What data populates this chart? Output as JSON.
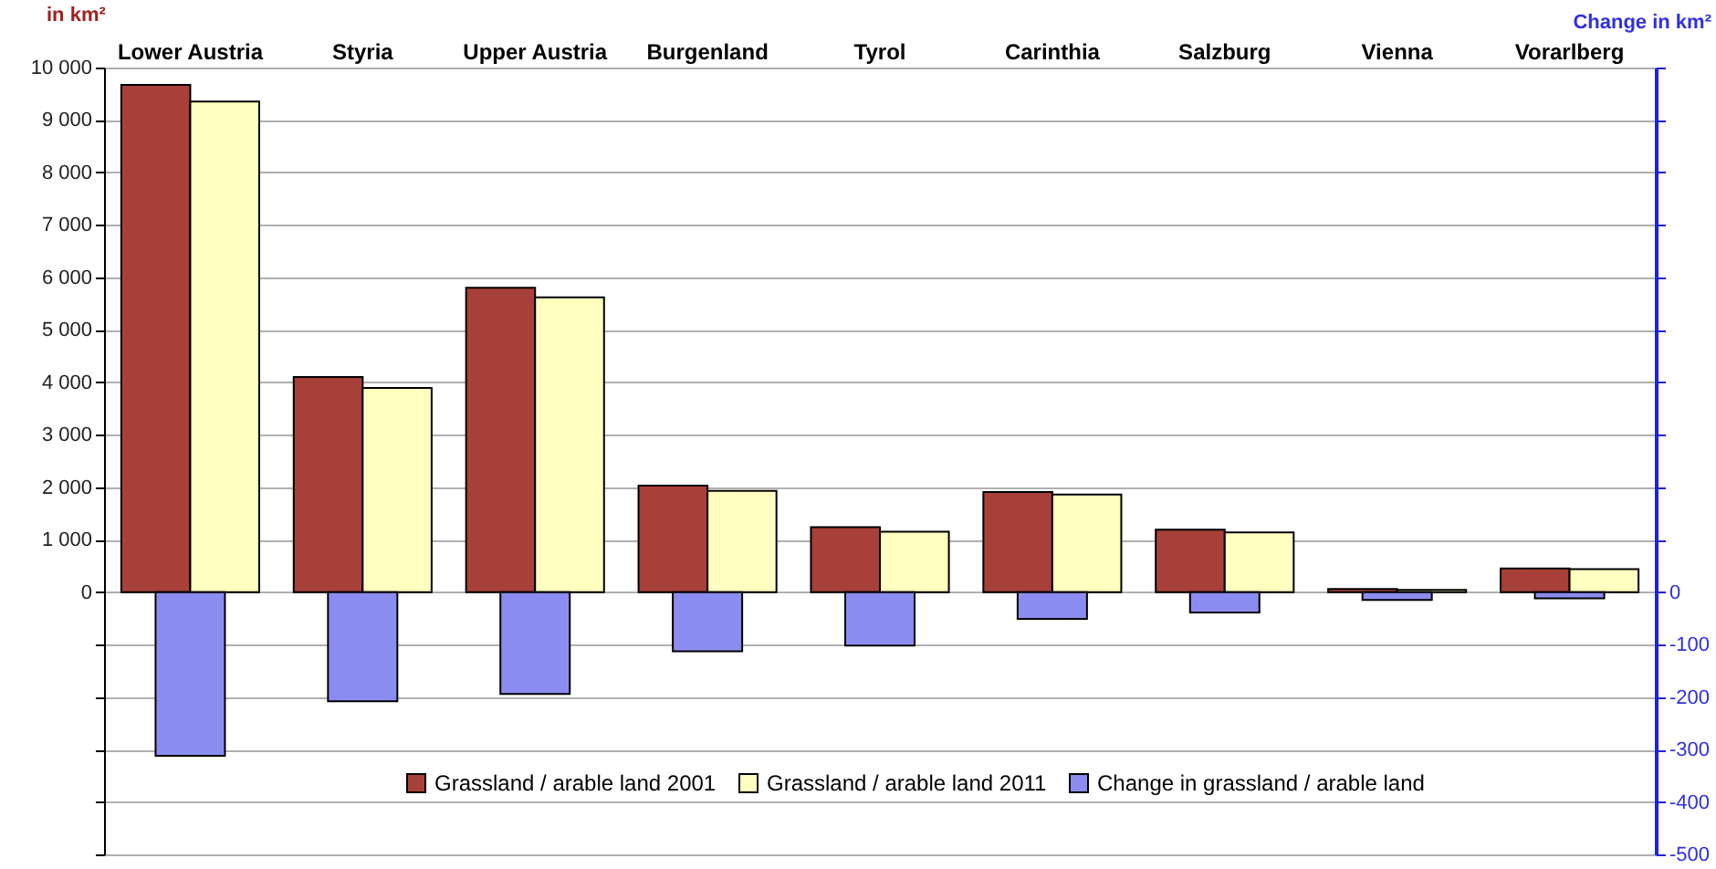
{
  "chart_data": {
    "type": "bar",
    "ylabel": "in km²",
    "y2label": "Change in km²",
    "categories": [
      "Lower Austria",
      "Styria",
      "Upper Austria",
      "Burgenland",
      "Tyrol",
      "Carinthia",
      "Salzburg",
      "Vienna",
      "Vorarlberg"
    ],
    "series": [
      {
        "name": "Grassland / arable land 2001",
        "color": "#a8403a",
        "values": [
          9670,
          4100,
          5800,
          2030,
          1240,
          1910,
          1190,
          60,
          450
        ]
      },
      {
        "name": "Grassland / arable land 2011",
        "color": "#ffffc0",
        "values": [
          9350,
          3890,
          5620,
          1930,
          1150,
          1860,
          1140,
          40,
          440
        ]
      },
      {
        "name": "Change in grassland / arable land",
        "color": "#8c8cf0",
        "axis": "y2",
        "values": [
          -312,
          -208,
          -194,
          -113,
          -102,
          -51,
          -39,
          -15,
          -12
        ]
      }
    ],
    "ylim": [
      -5000,
      10000
    ],
    "yticks": [
      {
        "value": -5000,
        "label": null
      },
      {
        "value": -4000,
        "label": null
      },
      {
        "value": -3000,
        "label": null
      },
      {
        "value": -2000,
        "label": null
      },
      {
        "value": -1000,
        "label": null
      },
      0,
      {
        "value": 1000,
        "label": "1 000"
      },
      {
        "value": 2000,
        "label": "2 000"
      },
      {
        "value": 3000,
        "label": "3 000"
      },
      {
        "value": 4000,
        "label": "4 000"
      },
      {
        "value": 5000,
        "label": "5 000"
      },
      {
        "value": 6000,
        "label": "6 000"
      },
      {
        "value": 7000,
        "label": "7 000"
      },
      {
        "value": 8000,
        "label": "8 000"
      },
      {
        "value": 9000,
        "label": "9 000"
      },
      {
        "value": 10000,
        "label": "10 000"
      }
    ],
    "y2lim": [
      -500,
      1000
    ],
    "y2ticks": [
      -500,
      -400,
      -300,
      -200,
      -100,
      0,
      {
        "value": 100,
        "label": null
      },
      {
        "value": 200,
        "label": null
      },
      {
        "value": 300,
        "label": null
      },
      {
        "value": 400,
        "label": null
      },
      {
        "value": 500,
        "label": null
      },
      {
        "value": 600,
        "label": null
      },
      {
        "value": 700,
        "label": null
      },
      {
        "value": 800,
        "label": null
      },
      {
        "value": 900,
        "label": null
      },
      {
        "value": 1000,
        "label": null
      }
    ],
    "grid": "y",
    "legend": "bottom"
  }
}
